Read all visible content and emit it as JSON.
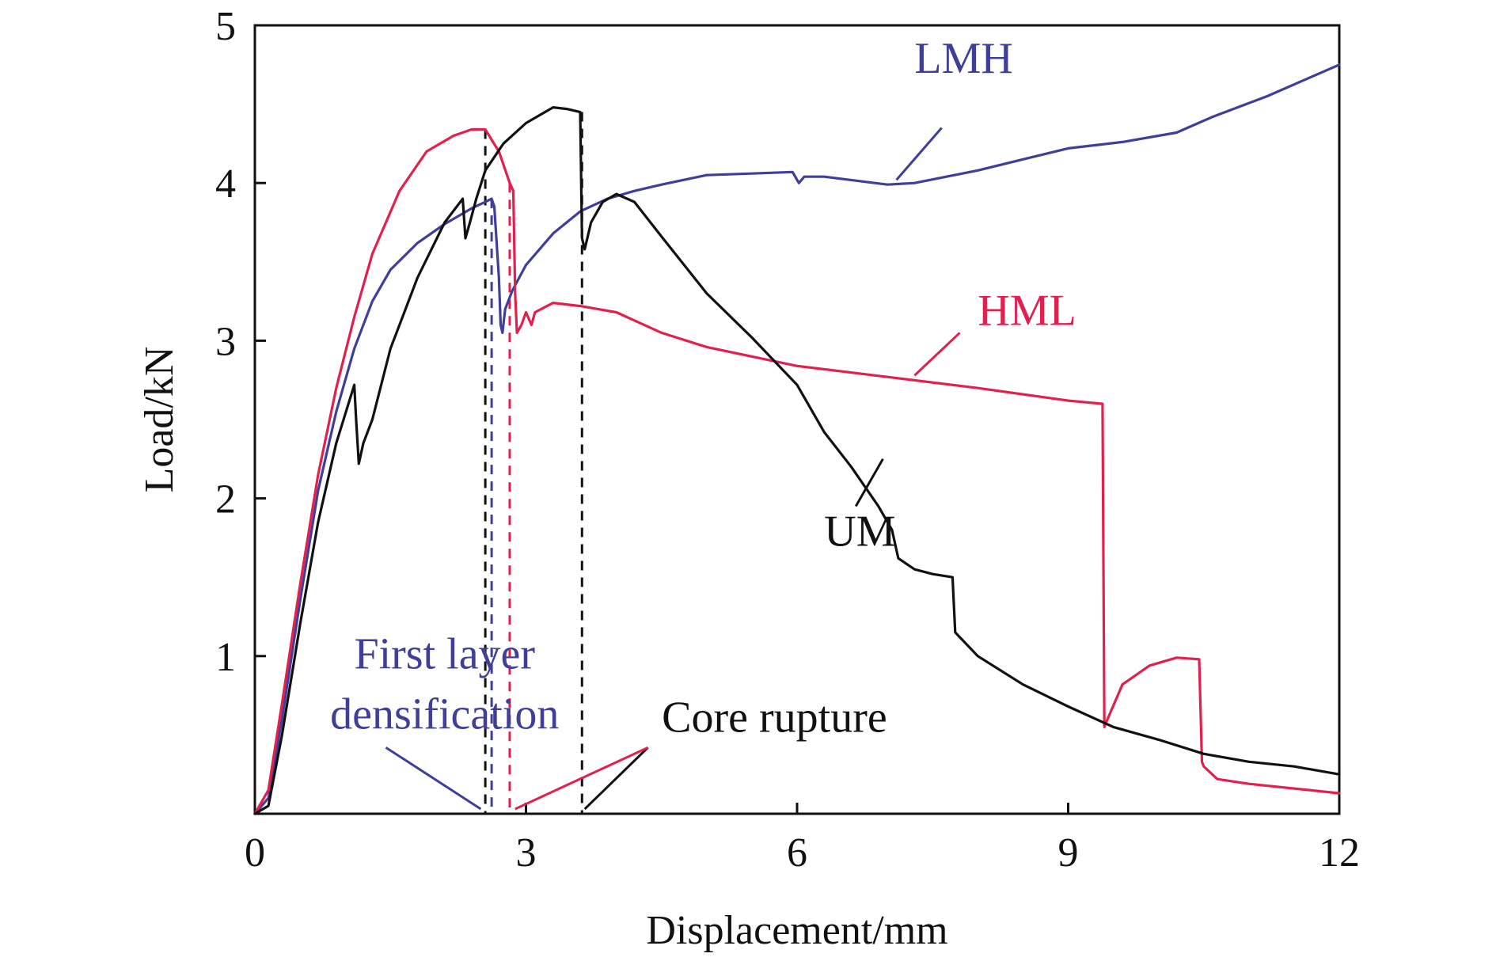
{
  "chart_data": {
    "type": "line",
    "xlabel": "Displacement/mm",
    "ylabel": "Load/kN",
    "xlim": [
      0,
      12
    ],
    "ylim": [
      0,
      5
    ],
    "xticks": [
      0,
      3,
      6,
      9,
      12
    ],
    "yticks": [
      1,
      2,
      3,
      4,
      5
    ],
    "grid": false,
    "legend": "none (series labelled directly on the plot)",
    "series": [
      {
        "name": "LMH",
        "color": "#3f3f9a",
        "x": [
          0,
          0.15,
          0.3,
          0.5,
          0.7,
          0.9,
          1.1,
          1.3,
          1.5,
          1.8,
          2.1,
          2.4,
          2.55,
          2.62,
          2.65,
          2.7,
          2.72,
          2.74,
          2.77,
          2.85,
          3.0,
          3.3,
          3.6,
          3.9,
          4.2,
          4.5,
          5.0,
          5.5,
          5.95,
          6.02,
          6.08,
          6.3,
          7.0,
          7.3,
          8.0,
          8.5,
          9.0,
          9.6,
          10.2,
          10.6,
          11.2,
          11.6,
          12.0
        ],
        "y": [
          0,
          0.1,
          0.6,
          1.35,
          2.05,
          2.55,
          2.95,
          3.25,
          3.45,
          3.62,
          3.74,
          3.84,
          3.88,
          3.9,
          3.85,
          3.4,
          3.1,
          3.05,
          3.2,
          3.32,
          3.48,
          3.68,
          3.82,
          3.9,
          3.95,
          3.99,
          4.05,
          4.06,
          4.07,
          4.0,
          4.04,
          4.04,
          3.99,
          4.0,
          4.08,
          4.15,
          4.22,
          4.26,
          4.32,
          4.42,
          4.55,
          4.65,
          4.75
        ]
      },
      {
        "name": "HML",
        "color": "#e2204e",
        "x": [
          0,
          0.15,
          0.3,
          0.5,
          0.7,
          0.9,
          1.1,
          1.3,
          1.6,
          1.9,
          2.2,
          2.4,
          2.55,
          2.7,
          2.82,
          2.86,
          2.88,
          2.9,
          2.95,
          3.0,
          3.06,
          3.1,
          3.3,
          3.6,
          4.0,
          4.5,
          5.0,
          6.0,
          7.0,
          8.0,
          9.0,
          9.38,
          9.4,
          9.42,
          9.6,
          9.9,
          10.2,
          10.45,
          10.48,
          10.5,
          10.65,
          11.0,
          11.5,
          12.0
        ],
        "y": [
          0,
          0.15,
          0.7,
          1.45,
          2.15,
          2.7,
          3.15,
          3.55,
          3.95,
          4.2,
          4.3,
          4.34,
          4.34,
          4.2,
          4.0,
          3.95,
          3.3,
          3.05,
          3.1,
          3.18,
          3.1,
          3.18,
          3.24,
          3.22,
          3.18,
          3.05,
          2.96,
          2.84,
          2.77,
          2.7,
          2.62,
          2.6,
          0.55,
          0.58,
          0.82,
          0.94,
          0.99,
          0.98,
          0.33,
          0.3,
          0.22,
          0.19,
          0.16,
          0.13
        ]
      },
      {
        "name": "UM",
        "color": "#111111",
        "x": [
          0,
          0.15,
          0.3,
          0.5,
          0.7,
          0.9,
          1.1,
          1.12,
          1.15,
          1.2,
          1.3,
          1.5,
          1.8,
          2.1,
          2.3,
          2.33,
          2.38,
          2.45,
          2.55,
          2.75,
          3.0,
          3.3,
          3.45,
          3.6,
          3.62,
          3.65,
          3.72,
          3.85,
          4.0,
          4.2,
          4.5,
          5.0,
          5.5,
          6.0,
          6.3,
          6.6,
          6.9,
          7.05,
          7.12,
          7.3,
          7.5,
          7.72,
          7.75,
          7.8,
          8.0,
          8.5,
          9.0,
          9.5,
          10.0,
          10.5,
          11.0,
          11.5,
          12.0
        ],
        "y": [
          0,
          0.05,
          0.5,
          1.2,
          1.85,
          2.35,
          2.72,
          2.5,
          2.22,
          2.35,
          2.5,
          2.95,
          3.4,
          3.75,
          3.9,
          3.65,
          3.75,
          3.9,
          4.08,
          4.25,
          4.38,
          4.48,
          4.47,
          4.45,
          3.65,
          3.58,
          3.75,
          3.88,
          3.93,
          3.88,
          3.66,
          3.3,
          3.02,
          2.72,
          2.42,
          2.2,
          1.95,
          1.8,
          1.62,
          1.55,
          1.52,
          1.5,
          1.15,
          1.12,
          1.0,
          0.82,
          0.68,
          0.55,
          0.47,
          0.38,
          0.33,
          0.3,
          0.25
        ]
      }
    ],
    "reference_lines": [
      {
        "x": 2.55,
        "color": "#111111"
      },
      {
        "x": 2.62,
        "color": "#3f3f9a"
      },
      {
        "x": 2.82,
        "color": "#e2204e"
      },
      {
        "x": 3.62,
        "color": "#111111"
      }
    ],
    "series_labels": [
      {
        "text": "LMH",
        "color": "#3f3f9a",
        "at": [
          7.3,
          4.7
        ],
        "leader": [
          [
            7.1,
            4.02
          ],
          [
            7.6,
            4.35
          ]
        ]
      },
      {
        "text": "HML",
        "color": "#e2204e",
        "at": [
          8.0,
          3.1
        ],
        "leader": [
          [
            7.3,
            2.78
          ],
          [
            7.8,
            3.05
          ]
        ]
      },
      {
        "text": "UM",
        "color": "#111111",
        "at": [
          6.3,
          1.7
        ],
        "leader": [
          [
            6.95,
            2.25
          ],
          [
            6.65,
            1.95
          ]
        ]
      }
    ],
    "annotations": [
      {
        "lines": [
          "First layer",
          "densification"
        ],
        "color": "#3f3f9a",
        "at": [
          2.1,
          0.92
        ],
        "leaders": [
          [
            [
              1.45,
              0.42
            ],
            [
              2.5,
              0.03
            ]
          ]
        ]
      },
      {
        "lines": [
          "Core rupture"
        ],
        "color": "#111111",
        "at": [
          5.75,
          0.52
        ],
        "leaders": [
          [
            [
              4.35,
              0.42
            ],
            [
              3.65,
              0.03
            ]
          ],
          [
            [
              4.35,
              0.42
            ],
            [
              2.88,
              0.03
            ]
          ]
        ],
        "leader_colors": [
          "#111111",
          "#e2204e"
        ]
      }
    ]
  }
}
